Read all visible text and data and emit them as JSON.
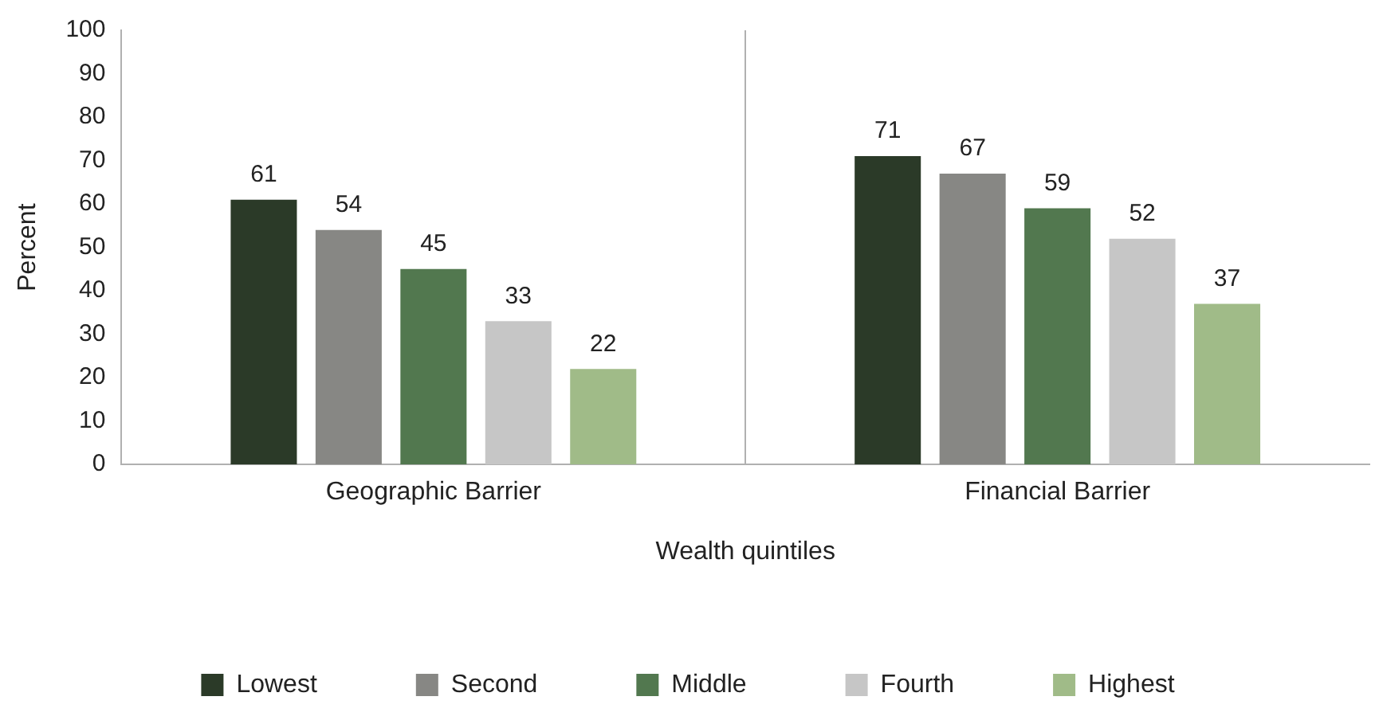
{
  "chart_data": {
    "type": "bar",
    "xlabel": "Wealth quintiles",
    "ylabel": "Percent",
    "categories": [
      "Geographic Barrier",
      "Financial Barrier"
    ],
    "series": [
      {
        "name": "Lowest",
        "color": "#2b3a28",
        "values": [
          61,
          71
        ]
      },
      {
        "name": "Second",
        "color": "#878784",
        "values": [
          54,
          67
        ]
      },
      {
        "name": "Middle",
        "color": "#52784f",
        "values": [
          45,
          59
        ]
      },
      {
        "name": "Fourth",
        "color": "#c6c6c6",
        "values": [
          33,
          52
        ]
      },
      {
        "name": "Highest",
        "color": "#a0bb88",
        "values": [
          22,
          37
        ]
      }
    ],
    "ylim": [
      0,
      100
    ],
    "yticks": [
      0,
      10,
      20,
      30,
      40,
      50,
      60,
      70,
      80,
      90,
      100
    ],
    "grid": false,
    "legend": "bottom",
    "data_labels": true
  }
}
